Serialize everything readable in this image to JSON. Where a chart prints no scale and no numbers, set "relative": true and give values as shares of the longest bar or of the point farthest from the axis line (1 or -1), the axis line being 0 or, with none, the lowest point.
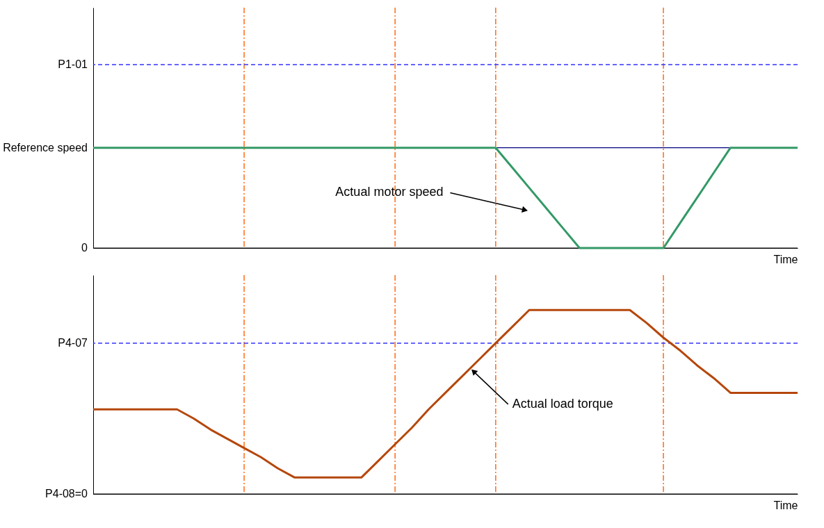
{
  "chart_data": [
    {
      "type": "line",
      "xlabel": "Time",
      "relative": true,
      "grid": "x",
      "categories": [
        null,
        null,
        null,
        null,
        null,
        null,
        null,
        null,
        null,
        null,
        null,
        null,
        null,
        null,
        null,
        null,
        null,
        null,
        null,
        null,
        null,
        null,
        null,
        null,
        null,
        null,
        null,
        null,
        null,
        null,
        null,
        null,
        null,
        null,
        null,
        null,
        null,
        null,
        null,
        null,
        null,
        null,
        null
      ],
      "series": [
        {
          "color": "#339966",
          "values": [
            1,
            1,
            1,
            1,
            1,
            1,
            1,
            1,
            1,
            1,
            1,
            1,
            1,
            1,
            1,
            1,
            1,
            1,
            1,
            1,
            1,
            1,
            1,
            1,
            1,
            0.8,
            0.6,
            0.4,
            0.2,
            0,
            0,
            0,
            0,
            0,
            0,
            0.25,
            0.5,
            0.75,
            1,
            1,
            1,
            1,
            1
          ]
        }
      ],
      "ref_lines": [
        {
          "axis": "y",
          "value": 1.83,
          "label": "P1-01",
          "color": "#3333ff",
          "line_style": "dashed"
        },
        {
          "axis": "y",
          "value": 1,
          "label": "Reference speed",
          "color": "#000080",
          "line_style": "solid"
        },
        {
          "axis": "y",
          "value": 0,
          "label": "0",
          "color": "#000000",
          "line_style": "solid"
        }
      ],
      "annotations": [
        "Actual motor speed"
      ]
    },
    {
      "type": "line",
      "xlabel": "Time",
      "relative": true,
      "grid": "x",
      "categories": [
        null,
        null,
        null,
        null,
        null,
        null,
        null,
        null,
        null,
        null,
        null,
        null,
        null,
        null,
        null,
        null,
        null,
        null,
        null,
        null,
        null,
        null,
        null,
        null,
        null,
        null,
        null,
        null,
        null,
        null,
        null,
        null,
        null,
        null,
        null,
        null,
        null,
        null,
        null,
        null,
        null,
        null,
        null
      ],
      "series": [
        {
          "color": "#b5470b",
          "values": [
            0.46,
            0.46,
            0.46,
            0.46,
            0.46,
            0.46,
            0.41,
            0.35,
            0.3,
            0.25,
            0.2,
            0.14,
            0.09,
            0.09,
            0.09,
            0.09,
            0.09,
            0.18,
            0.27,
            0.36,
            0.46,
            0.55,
            0.64,
            0.73,
            0.82,
            0.91,
            1,
            1,
            1,
            1,
            1,
            1,
            1,
            0.93,
            0.85,
            0.78,
            0.7,
            0.63,
            0.55,
            0.55,
            0.55,
            0.55,
            0.55
          ]
        }
      ],
      "ref_lines": [
        {
          "axis": "y",
          "value": 0.82,
          "label": "P4-07",
          "color": "#3333ff",
          "line_style": "dashed"
        },
        {
          "axis": "y",
          "value": 0,
          "label": "P4-08=0",
          "color": "#000000",
          "line_style": "solid"
        }
      ],
      "annotations": [
        "Actual load torque"
      ]
    }
  ]
}
